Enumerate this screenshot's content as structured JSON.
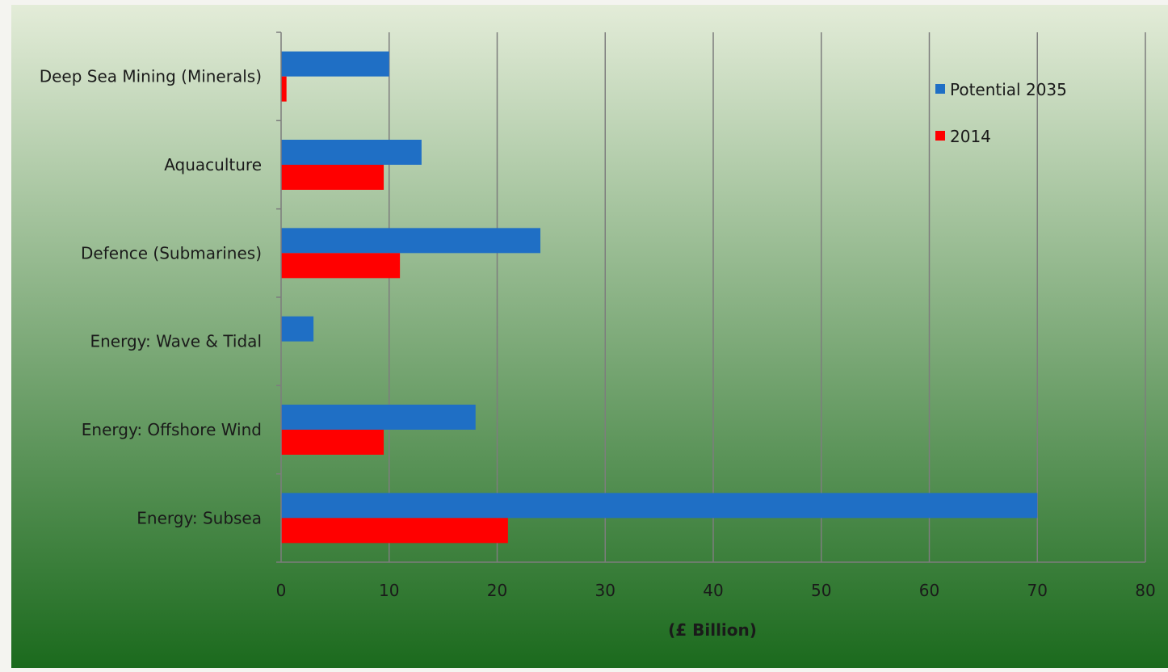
{
  "chart_data": {
    "type": "bar",
    "orientation": "horizontal",
    "categories": [
      "Deep Sea Mining (Minerals)",
      "Aquaculture",
      "Defence (Submarines)",
      "Energy: Wave & Tidal",
      "Energy: Offshore Wind",
      "Energy: Subsea"
    ],
    "series": [
      {
        "name": "Potential 2035",
        "color": "#1f6fc5",
        "values": [
          10,
          13,
          24,
          3,
          18,
          70
        ]
      },
      {
        "name": "2014",
        "color": "#ff0000",
        "values": [
          0.5,
          9.5,
          11,
          0,
          9.5,
          21
        ]
      }
    ],
    "xlabel": "(£ Billion)",
    "ylabel": "",
    "title": "",
    "xlim": [
      0,
      80
    ],
    "xticks": [
      "0",
      "10",
      "20",
      "30",
      "40",
      "50",
      "60",
      "70",
      "80"
    ],
    "grid": "vertical",
    "legend_position": "top-right",
    "background_gradient": [
      "#e3ecd8",
      "#1b6a1d"
    ]
  }
}
